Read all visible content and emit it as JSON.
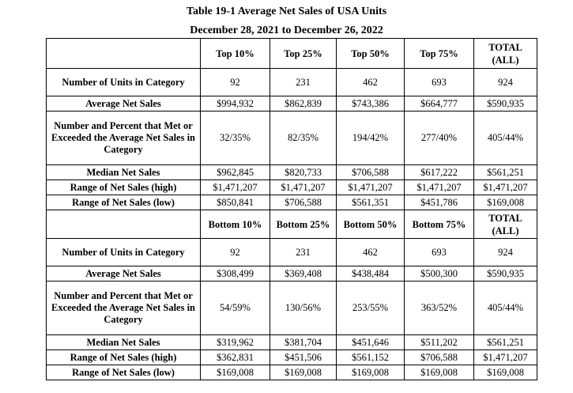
{
  "title_line1": "Table 19-1 Average Net Sales of USA Units",
  "title_line2": "December 28, 2021 to December 26, 2022",
  "top_section": {
    "headers": [
      "Top 10%",
      "Top 25%",
      "Top 50%",
      "Top 75%",
      "TOTAL (ALL)"
    ],
    "rows": [
      {
        "label": "Number of Units in Category",
        "values": [
          "92",
          "231",
          "462",
          "693",
          "924"
        ]
      },
      {
        "label": "Average Net Sales",
        "values": [
          "$994,932",
          "$862,839",
          "$743,386",
          "$664,777",
          "$590,935"
        ]
      },
      {
        "label": "Number and Percent that Met or Exceeded the Average Net Sales in Category",
        "values": [
          "32/35%",
          "82/35%",
          "194/42%",
          "277/40%",
          "405/44%"
        ]
      },
      {
        "label": "Median Net Sales",
        "values": [
          "$962,845",
          "$820,733",
          "$706,588",
          "$617,222",
          "$561,251"
        ]
      },
      {
        "label": "Range of Net Sales (high)",
        "values": [
          "$1,471,207",
          "$1,471,207",
          "$1,471,207",
          "$1,471,207",
          "$1,471,207"
        ]
      },
      {
        "label": "Range of Net Sales (low)",
        "values": [
          "$850,841",
          "$706,588",
          "$561,351",
          "$451,786",
          "$169,008"
        ]
      }
    ]
  },
  "bottom_section": {
    "headers": [
      "Bottom 10%",
      "Bottom 25%",
      "Bottom 50%",
      "Bottom 75%",
      "TOTAL (ALL)"
    ],
    "rows": [
      {
        "label": "Number of Units in Category",
        "values": [
          "92",
          "231",
          "462",
          "693",
          "924"
        ]
      },
      {
        "label": "Average Net Sales",
        "values": [
          "$308,499",
          "$369,408",
          "$438,484",
          "$500,300",
          "$590,935"
        ]
      },
      {
        "label": "Number and Percent that Met or Exceeded the Average Net Sales in Category",
        "values": [
          "54/59%",
          "130/56%",
          "253/55%",
          "363/52%",
          "405/44%"
        ]
      },
      {
        "label": "Median Net Sales",
        "values": [
          "$319,962",
          "$381,704",
          "$451,646",
          "$511,202",
          "$561,251"
        ]
      },
      {
        "label": "Range of Net Sales (high)",
        "values": [
          "$362,831",
          "$451,506",
          "$561,152",
          "$706,588",
          "$1,471,207"
        ]
      },
      {
        "label": "Range of Net Sales (low)",
        "values": [
          "$169,008",
          "$169,008",
          "$169,008",
          "$169,008",
          "$169,008"
        ]
      }
    ]
  }
}
